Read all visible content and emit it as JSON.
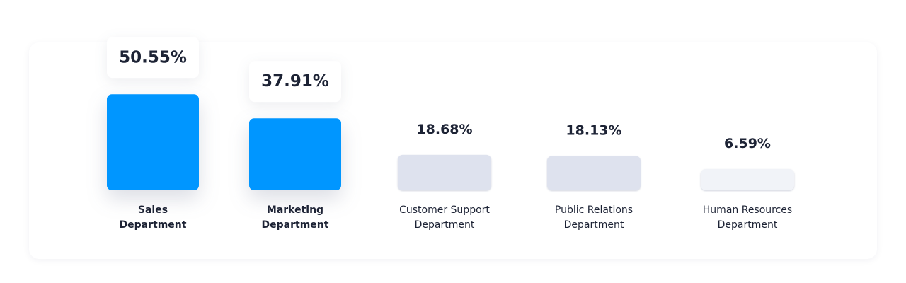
{
  "colors": {
    "highlight": "#0096FF",
    "muted": "#DEE2EE",
    "muted_light": "#F1F3F8",
    "text": "#1D2335"
  },
  "chart_data": {
    "type": "bar",
    "categories": [
      [
        "Sales",
        "Department"
      ],
      [
        "Marketing",
        "Department"
      ],
      [
        "Customer Support",
        "Department"
      ],
      [
        "Public Relations",
        "Department"
      ],
      [
        "Human Resources",
        "Department"
      ]
    ],
    "values": [
      50.55,
      37.91,
      18.68,
      18.13,
      6.59
    ],
    "labels": [
      "50.55%",
      "37.91%",
      "18.68%",
      "18.13%",
      "6.59%"
    ],
    "highlighted": [
      true,
      true,
      false,
      false,
      false
    ],
    "title": "",
    "xlabel": "",
    "ylabel": "",
    "ylim": [
      0,
      54
    ],
    "grid": false,
    "legend": "none"
  }
}
